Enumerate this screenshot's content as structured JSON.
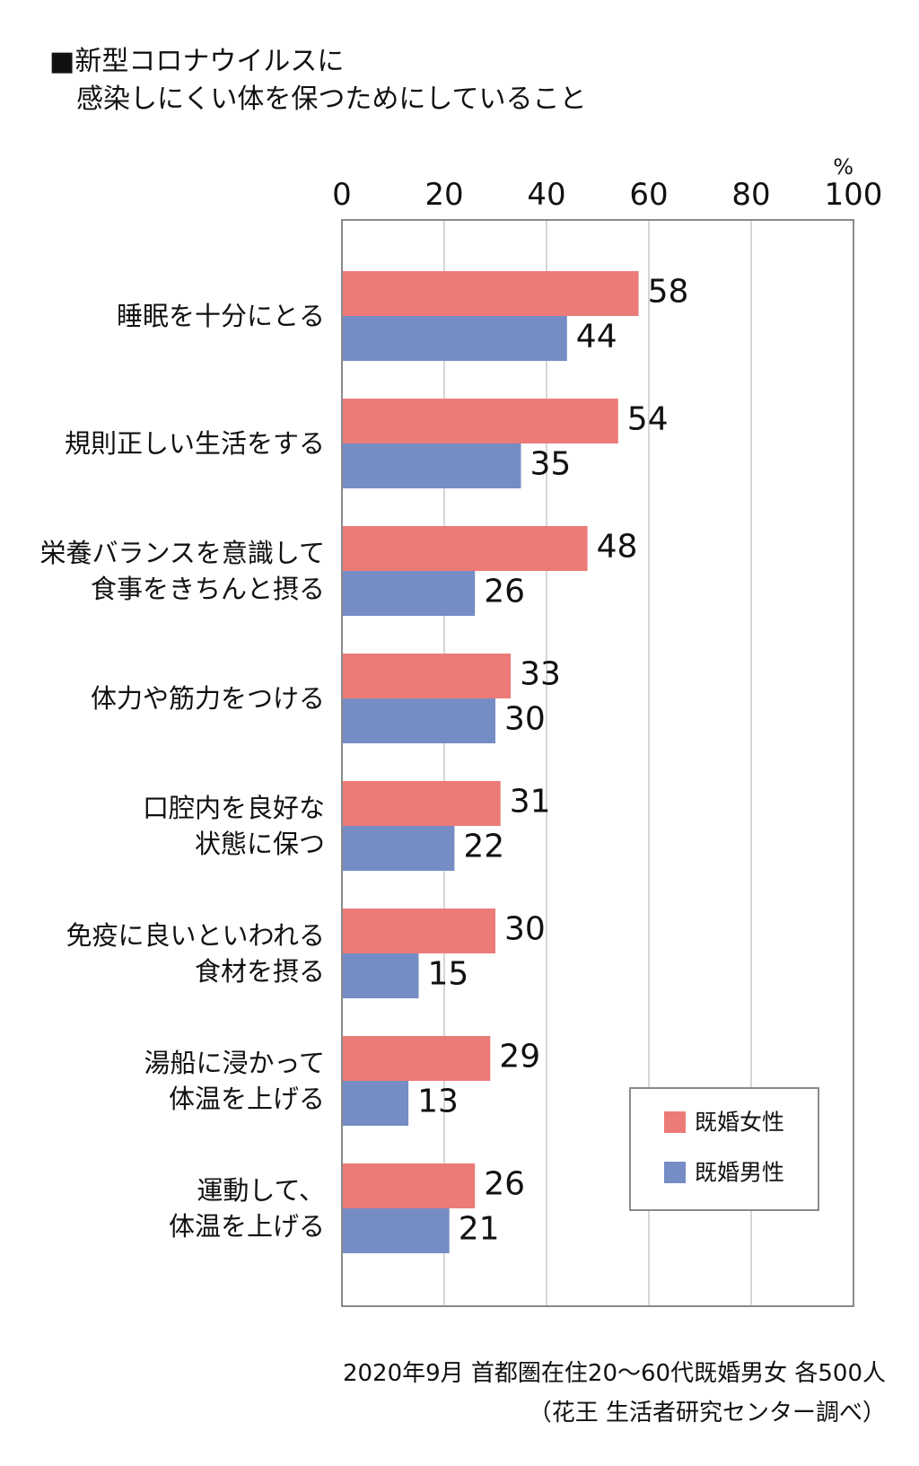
{
  "title": {
    "line1": "■新型コロナウイルスに",
    "line2": "感染しにくい体を保つためにしていること"
  },
  "chart_data": {
    "type": "bar",
    "orientation": "horizontal",
    "unit": "%",
    "xlim": [
      0,
      100
    ],
    "xticks": [
      "0",
      "20",
      "40",
      "60",
      "80",
      "100"
    ],
    "grid": true,
    "legend_position": "bottom-right",
    "categories": [
      [
        "睡眠を十分にとる"
      ],
      [
        "規則正しい生活をする"
      ],
      [
        "栄養バランスを意識して",
        "食事をきちんと摂る"
      ],
      [
        "体力や筋力をつける"
      ],
      [
        "口腔内を良好な",
        "状態に保つ"
      ],
      [
        "免疫に良いといわれる",
        "食材を摂る"
      ],
      [
        "湯船に浸かって",
        "体温を上げる"
      ],
      [
        "運動して、",
        "体温を上げる"
      ]
    ],
    "series": [
      {
        "name": "既婚女性",
        "color": "#ec7b77",
        "values": [
          58,
          54,
          48,
          33,
          31,
          30,
          29,
          26
        ]
      },
      {
        "name": "既婚男性",
        "color": "#758dc4",
        "values": [
          44,
          35,
          26,
          30,
          22,
          15,
          13,
          21
        ]
      }
    ]
  },
  "footer": {
    "line1": "2020年9月 首都圏在住20～60代既婚男女 各500人",
    "line2": "（花王 生活者研究センター調べ）"
  }
}
